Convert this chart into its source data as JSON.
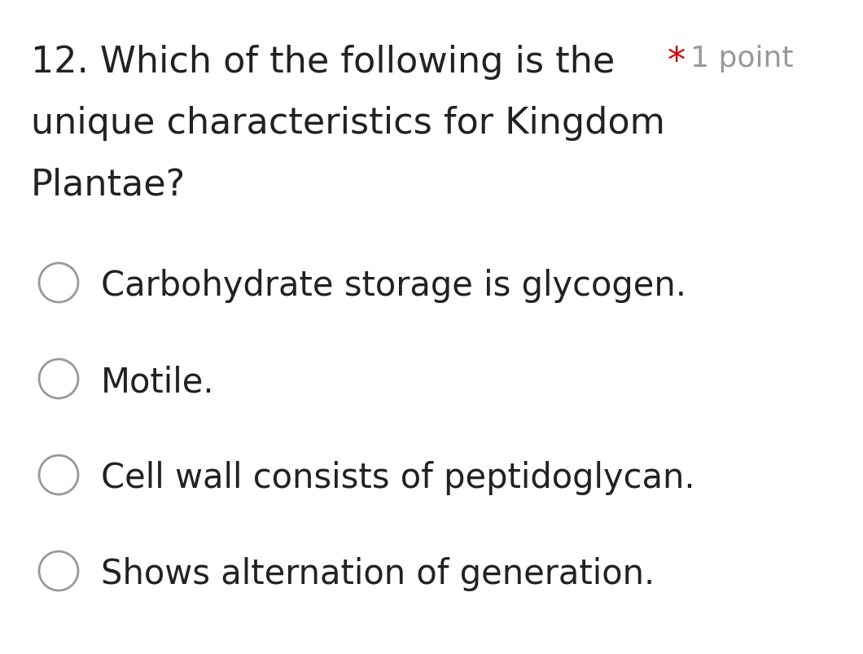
{
  "background_color": "#ffffff",
  "question_number": "12.",
  "question_text_lines": [
    "Which of the following is the",
    "unique characteristics for Kingdom",
    "Plantae?"
  ],
  "asterisk": "*",
  "points_text": "1 point",
  "asterisk_color": "#cc0000",
  "points_color": "#999999",
  "question_color": "#222222",
  "options": [
    "Carbohydrate storage is glycogen.",
    "Motile.",
    "Cell wall consists of peptidoglycan.",
    "Shows alternation of generation."
  ],
  "option_color": "#222222",
  "circle_edge_color": "#999999",
  "circle_face_color": "#ffffff",
  "circle_linewidth": 2.0,
  "fig_width": 10.6,
  "fig_height": 8.04,
  "dpi": 100
}
